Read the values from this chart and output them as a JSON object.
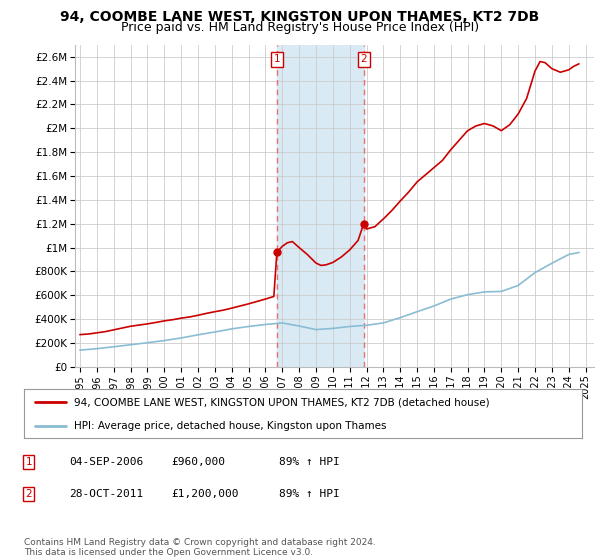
{
  "title": "94, COOMBE LANE WEST, KINGSTON UPON THAMES, KT2 7DB",
  "subtitle": "Price paid vs. HM Land Registry's House Price Index (HPI)",
  "ylim": [
    0,
    2700000
  ],
  "yticks": [
    0,
    200000,
    400000,
    600000,
    800000,
    1000000,
    1200000,
    1400000,
    1600000,
    1800000,
    2000000,
    2200000,
    2400000,
    2600000
  ],
  "ytick_labels": [
    "£0",
    "£200K",
    "£400K",
    "£600K",
    "£800K",
    "£1M",
    "£1.2M",
    "£1.4M",
    "£1.6M",
    "£1.8M",
    "£2M",
    "£2.2M",
    "£2.4M",
    "£2.6M"
  ],
  "xlim_start": 1994.7,
  "xlim_end": 2025.5,
  "xticks": [
    1995,
    1996,
    1997,
    1998,
    1999,
    2000,
    2001,
    2002,
    2003,
    2004,
    2005,
    2006,
    2007,
    2008,
    2009,
    2010,
    2011,
    2012,
    2013,
    2014,
    2015,
    2016,
    2017,
    2018,
    2019,
    2020,
    2021,
    2022,
    2023,
    2024,
    2025
  ],
  "background_color": "#ffffff",
  "plot_bg_color": "#ffffff",
  "grid_color": "#cccccc",
  "red_line_color": "#cc0000",
  "blue_line_color": "#89bdd3",
  "transaction1": {
    "date_num": 2006.68,
    "price": 960000,
    "label": "1"
  },
  "transaction2": {
    "date_num": 2011.83,
    "price": 1200000,
    "label": "2"
  },
  "vline_color": "#e87070",
  "highlight_color": "#daeaf5",
  "legend_red_label": "94, COOMBE LANE WEST, KINGSTON UPON THAMES, KT2 7DB (detached house)",
  "legend_blue_label": "HPI: Average price, detached house, Kingston upon Thames",
  "table_row1": [
    "1",
    "04-SEP-2006",
    "£960,000",
    "89% ↑ HPI"
  ],
  "table_row2": [
    "2",
    "28-OCT-2011",
    "£1,200,000",
    "89% ↑ HPI"
  ],
  "footer": "Contains HM Land Registry data © Crown copyright and database right 2024.\nThis data is licensed under the Open Government Licence v3.0.",
  "title_fontsize": 10,
  "subtitle_fontsize": 9,
  "axis_fontsize": 7.5,
  "tick_fontsize": 7.0
}
